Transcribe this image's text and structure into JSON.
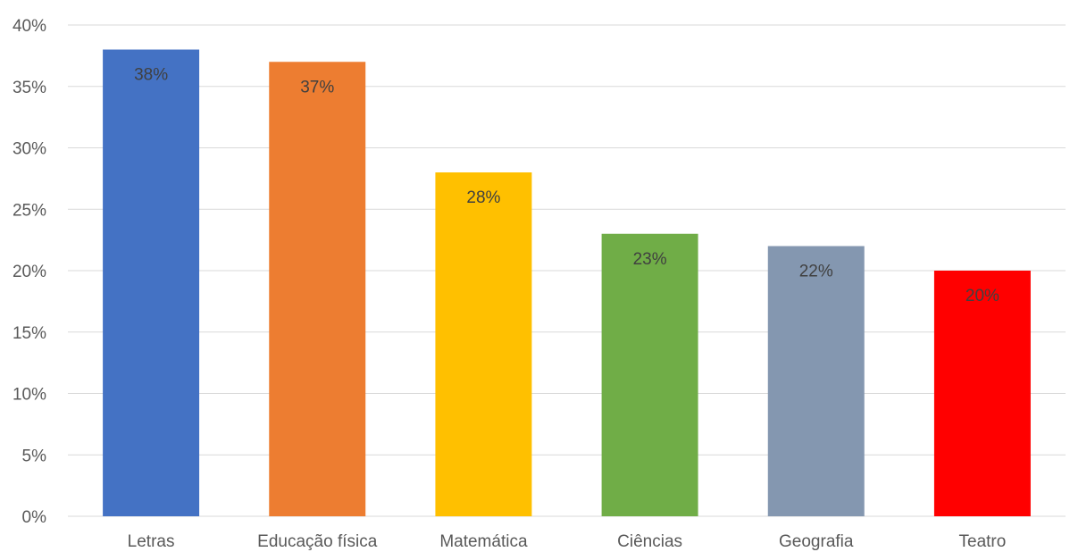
{
  "chart_data": {
    "type": "bar",
    "title": "",
    "xlabel": "",
    "ylabel": "",
    "categories": [
      "Letras",
      "Educação física",
      "Matemática",
      "Ciências",
      "Geografia",
      "Teatro"
    ],
    "values": [
      38,
      37,
      28,
      23,
      22,
      20
    ],
    "data_labels": [
      "38%",
      "37%",
      "28%",
      "23%",
      "22%",
      "20%"
    ],
    "colors": [
      "#4472C4",
      "#ED7D31",
      "#FFC000",
      "#70AD47",
      "#8497B0",
      "#FF0000"
    ],
    "ylim": [
      0,
      40
    ],
    "yticks": [
      0,
      5,
      10,
      15,
      20,
      25,
      30,
      35,
      40
    ],
    "ytick_labels": [
      "0%",
      "5%",
      "10%",
      "15%",
      "20%",
      "25%",
      "30%",
      "35%",
      "40%"
    ],
    "grid": true,
    "legend": "none"
  }
}
